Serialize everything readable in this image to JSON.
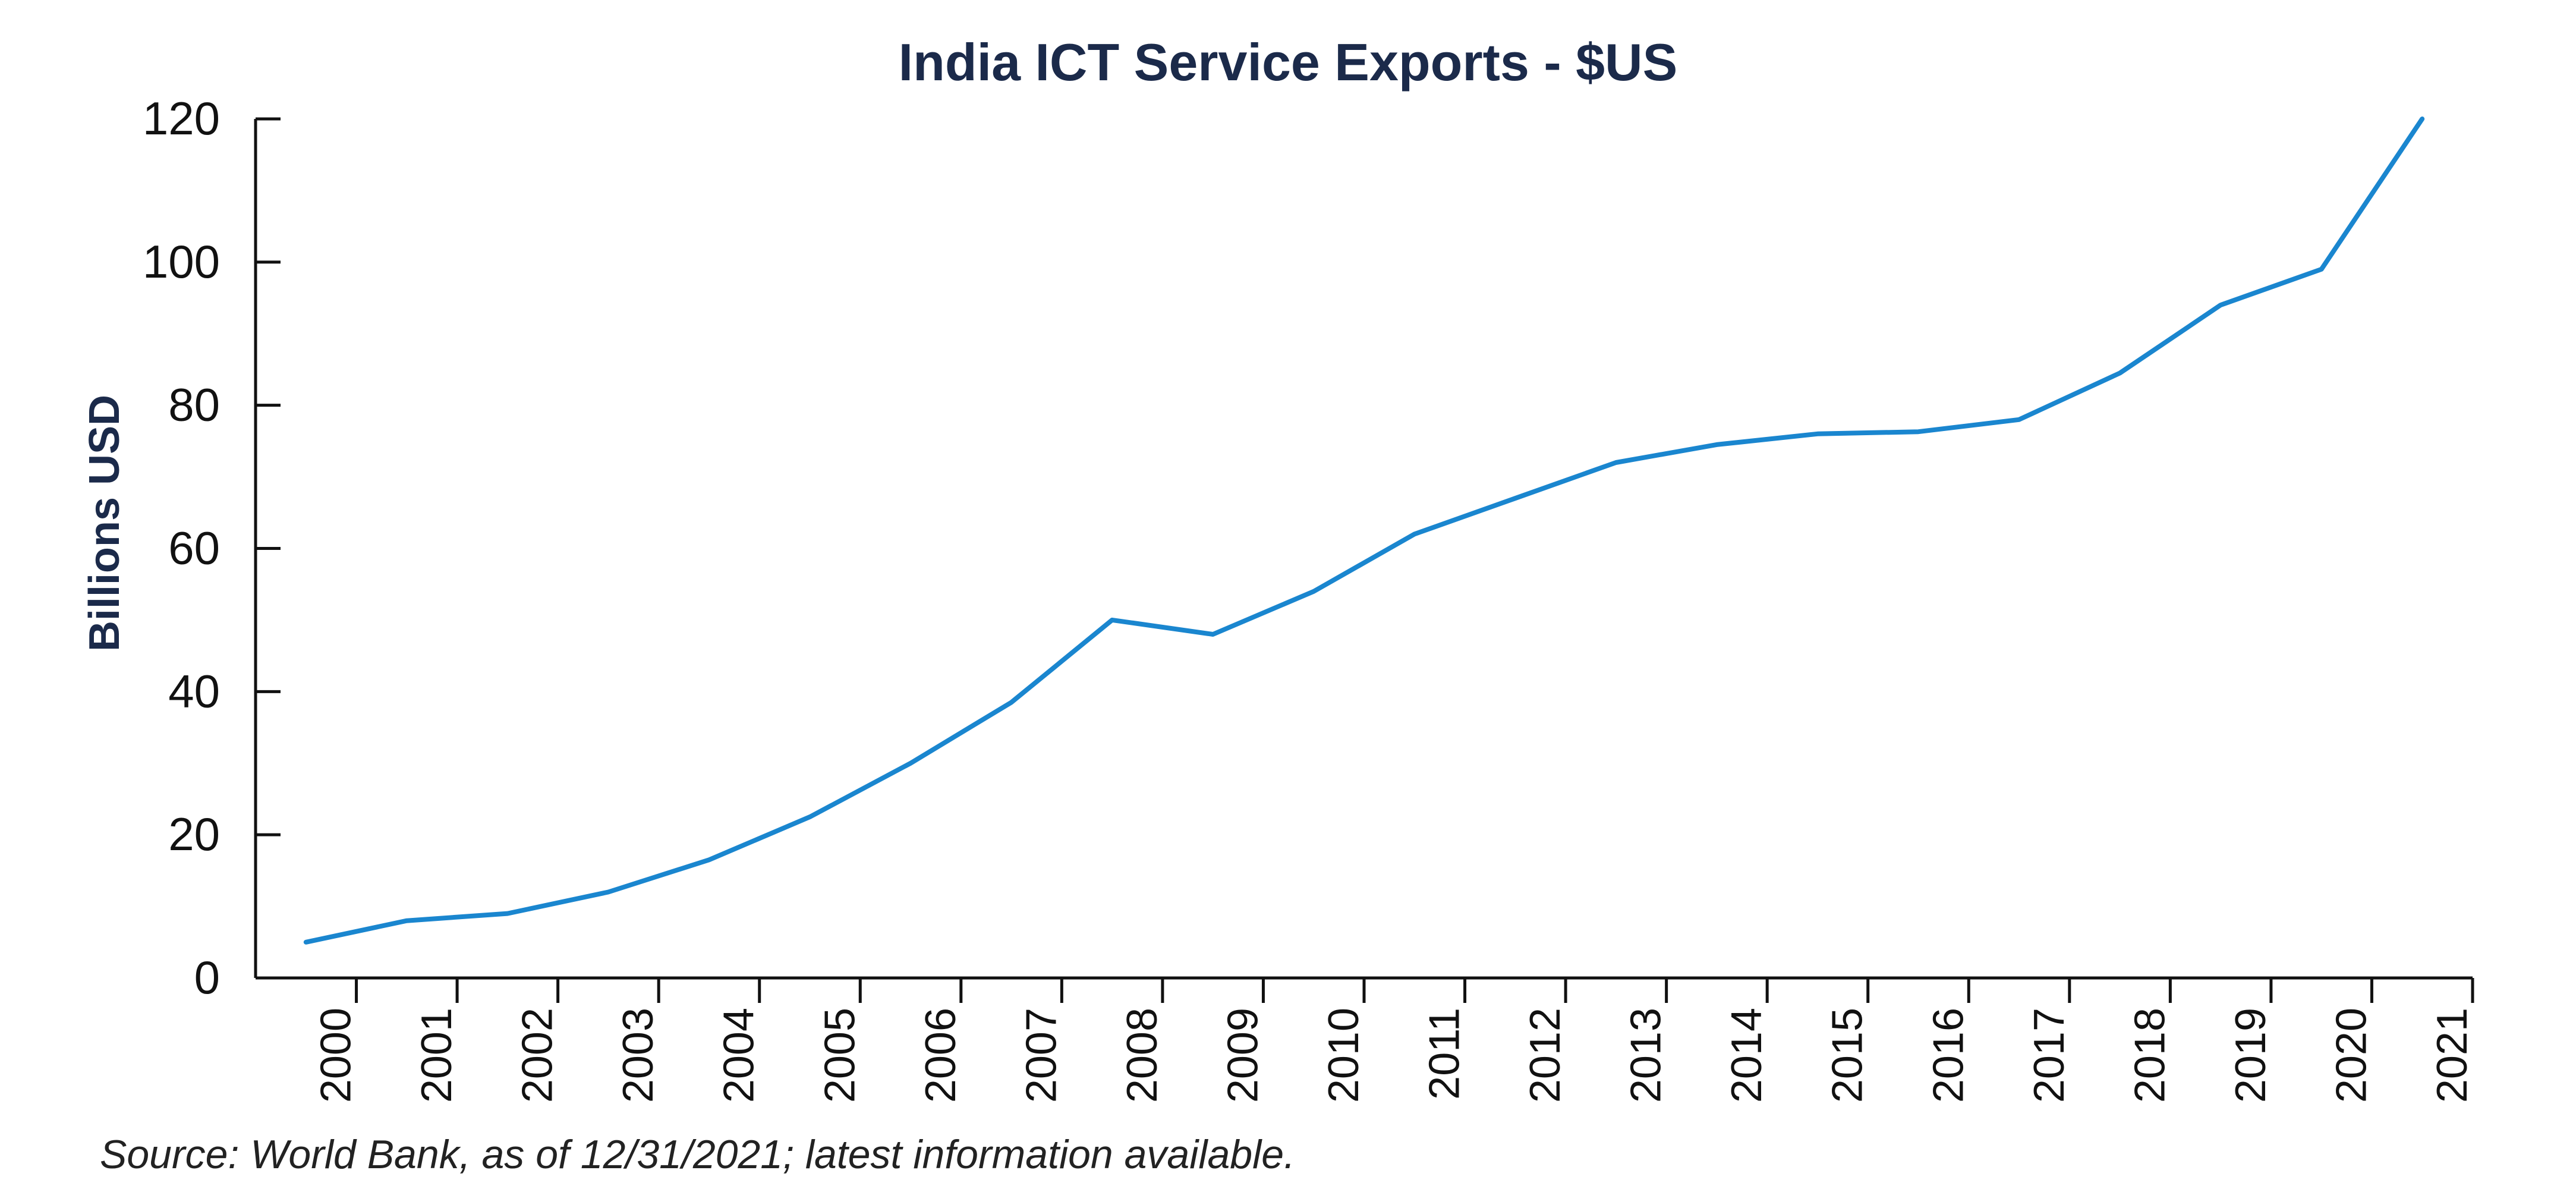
{
  "chart_data": {
    "type": "line",
    "title": "India ICT Service Exports - $US",
    "xlabel": "",
    "ylabel": "Billions USD",
    "ylim": [
      0,
      120
    ],
    "yticks": [
      0,
      20,
      40,
      60,
      80,
      100,
      120
    ],
    "categories": [
      "2000",
      "2001",
      "2002",
      "2003",
      "2004",
      "2005",
      "2006",
      "2007",
      "2008",
      "2009",
      "2010",
      "2011",
      "2012",
      "2013",
      "2014",
      "2015",
      "2016",
      "2017",
      "2018",
      "2019",
      "2020",
      "2021"
    ],
    "series": [
      {
        "name": "India ICT Service Exports",
        "color": "#1a86cf",
        "values": [
          5,
          8,
          9,
          12,
          16.5,
          22.5,
          30,
          38.5,
          50,
          48,
          54,
          62,
          67,
          72,
          74.5,
          76,
          76.3,
          78,
          84.5,
          94,
          99,
          120
        ]
      }
    ],
    "grid": false,
    "legend": "none"
  },
  "source_note": "Source: World Bank, as of 12/31/2021; latest information available."
}
